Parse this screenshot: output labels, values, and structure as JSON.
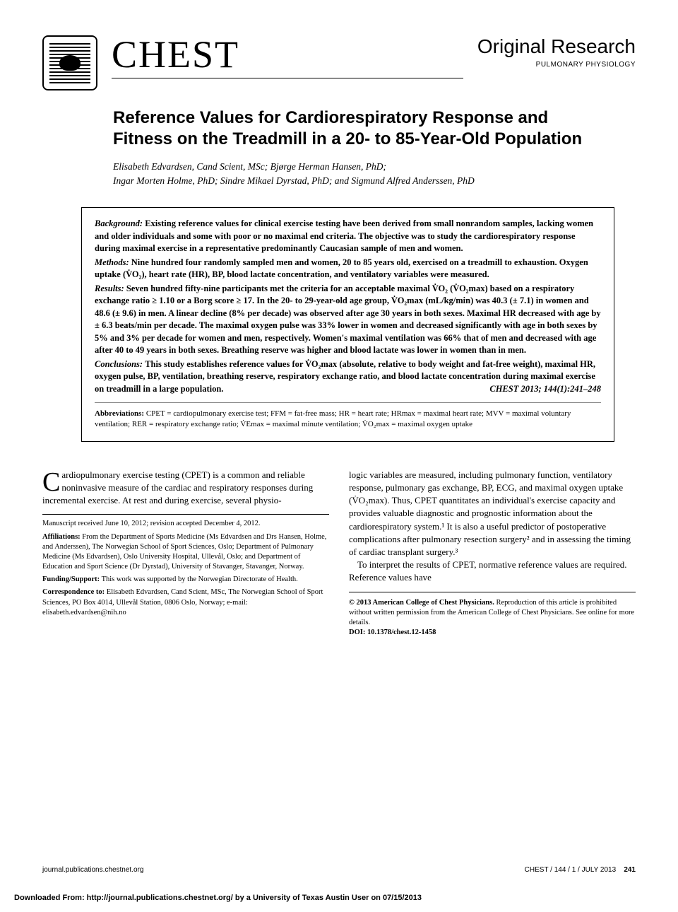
{
  "header": {
    "journal_name": "CHEST",
    "section_label": "Original Research",
    "subsection": "PULMONARY PHYSIOLOGY"
  },
  "article": {
    "title": "Reference Values for Cardiorespiratory Response and Fitness on the Treadmill in a 20- to 85-Year-Old Population",
    "authors_line1": "Elisabeth Edvardsen, Cand Scient, MSc; Bjørge Herman Hansen, PhD;",
    "authors_line2": "Ingar Morten Holme, PhD; Sindre Mikael Dyrstad, PhD; and Sigmund Alfred Anderssen, PhD"
  },
  "abstract": {
    "background_label": "Background:",
    "background_text": "Existing reference values for clinical exercise testing have been derived from small nonrandom samples, lacking women and older individuals and some with poor or no maximal end criteria. The objective was to study the cardiorespiratory response during maximal exercise in a representative predominantly Caucasian sample of men and women.",
    "methods_label": "Methods:",
    "methods_text": "Nine hundred four randomly sampled men and women, 20 to 85 years old, exercised on a treadmill to exhaustion. Oxygen uptake (V̇O₂), heart rate (HR), BP, blood lactate concentration, and ventilatory variables were measured.",
    "results_label": "Results:",
    "results_text": "Seven hundred fifty-nine participants met the criteria for an acceptable maximal V̇O₂ (V̇O₂max) based on a respiratory exchange ratio ≥ 1.10 or a Borg score ≥ 17. In the 20- to 29-year-old age group, V̇O₂max (mL/kg/min) was 40.3 (± 7.1) in women and 48.6 (± 9.6) in men. A linear decline (8% per decade) was observed after age 30 years in both sexes. Maximal HR decreased with age by ± 6.3 beats/min per decade. The maximal oxygen pulse was 33% lower in women and decreased significantly with age in both sexes by 5% and 3% per decade for women and men, respectively. Women's maximal ventilation was 66% that of men and decreased with age after 40 to 49 years in both sexes. Breathing reserve was higher and blood lactate was lower in women than in men.",
    "conclusions_label": "Conclusions:",
    "conclusions_text": "This study establishes reference values for V̇O₂max (absolute, relative to body weight and fat-free weight), maximal HR, oxygen pulse, BP, ventilation, breathing reserve, respiratory exchange ratio, and blood lactate concentration during maximal exercise on treadmill in a large population.",
    "citation": "CHEST 2013; 144(1):241–248",
    "abbrev_label": "Abbreviations:",
    "abbrev_text": "CPET = cardiopulmonary exercise test; FFM = fat-free mass; HR = heart rate; HRmax = maximal heart rate; MVV = maximal voluntary ventilation; RER = respiratory exchange ratio; V̇Emax = maximal minute ventilation; V̇O₂max = maximal oxygen uptake"
  },
  "body": {
    "left_para": "ardiopulmonary exercise testing (CPET) is a common and reliable noninvasive measure of the cardiac and respiratory responses during incremental exercise. At rest and during exercise, several physio-",
    "right_para1": "logic variables are measured, including pulmonary function, ventilatory response, pulmonary gas exchange, BP, ECG, and maximal oxygen uptake (V̇O₂max). Thus, CPET quantitates an individual's exercise capacity and provides valuable diagnostic and prognostic information about the cardiorespiratory system.¹ It is also a useful predictor of postoperative complications after pulmonary resection surgery² and in assessing the timing of cardiac transplant surgery.³",
    "right_para2": "To interpret the results of CPET, normative reference values are required. Reference values have"
  },
  "meta": {
    "received": "Manuscript received June 10, 2012; revision accepted December 4, 2012.",
    "affil_label": "Affiliations:",
    "affil_text": "From the Department of Sports Medicine (Ms Edvardsen and Drs Hansen, Holme, and Anderssen), The Norwegian School of Sport Sciences, Oslo; Department of Pulmonary Medicine (Ms Edvardsen), Oslo University Hospital, Ullevål, Oslo; and Department of Education and Sport Science (Dr Dyrstad), University of Stavanger, Stavanger, Norway.",
    "funding_label": "Funding/Support:",
    "funding_text": "This work was supported by the Norwegian Directorate of Health.",
    "corr_label": "Correspondence to:",
    "corr_text": "Elisabeth Edvardsen, Cand Scient, MSc, The Norwegian School of Sport Sciences, PO Box 4014, Ullevål Station, 0806 Oslo, Norway; e-mail: elisabeth.edvardsen@nih.no"
  },
  "copyright": {
    "line1": "© 2013 American College of Chest Physicians.",
    "line2": "Reproduction of this article is prohibited without written permission from the American College of Chest Physicians. See online for more details.",
    "doi_label": "DOI: 10.1378/chest.12-1458"
  },
  "footer": {
    "left": "journal.publications.chestnet.org",
    "right": "CHEST / 144 / 1 / JULY 2013",
    "page": "241"
  },
  "download": "Downloaded From: http://journal.publications.chestnet.org/ by a University of Texas Austin User  on 07/15/2013"
}
